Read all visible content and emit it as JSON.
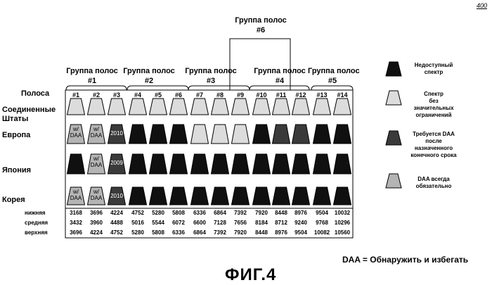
{
  "figure_ref": "400",
  "figure_label": "ФИГ.4",
  "daa_definition": "DAA = Обнаружить и избегать",
  "groups": [
    {
      "label": "Группа полос",
      "num": "#1"
    },
    {
      "label": "Группа полос",
      "num": "#2"
    },
    {
      "label": "Группа полос",
      "num": "#3"
    },
    {
      "label": "Группа полос",
      "num": "#4"
    },
    {
      "label": "Группа полос",
      "num": "#5"
    },
    {
      "label": "Группа полос",
      "num": "#6"
    }
  ],
  "row_labels": {
    "band": "Полоса",
    "usa_1": "Соединенные",
    "usa_2": "Штаты",
    "europe": "Европа",
    "japan": "Япония",
    "korea": "Корея"
  },
  "channels": [
    "#1",
    "#2",
    "#3",
    "#4",
    "#5",
    "#6",
    "#7",
    "#8",
    "#9",
    "#10",
    "#11",
    "#12",
    "#13",
    "#14"
  ],
  "freq_labels": {
    "low": "нижняя",
    "mid": "средняя",
    "high": "верхняя"
  },
  "freqs": {
    "low": [
      "3168",
      "3696",
      "4224",
      "4752",
      "5280",
      "5808",
      "6336",
      "6864",
      "7392",
      "7920",
      "8448",
      "8976",
      "9504",
      "10032"
    ],
    "mid": [
      "3432",
      "3960",
      "4488",
      "5016",
      "5544",
      "6072",
      "6600",
      "7128",
      "7656",
      "8184",
      "8712",
      "9240",
      "9768",
      "10296"
    ],
    "high": [
      "3696",
      "4224",
      "4752",
      "5280",
      "5808",
      "6336",
      "6864",
      "7392",
      "7920",
      "8448",
      "8976",
      "9504",
      "10082",
      "10560"
    ]
  },
  "legend": [
    {
      "lines": [
        "Недоступный",
        "спектр"
      ],
      "style": "black"
    },
    {
      "lines": [
        "Спектр",
        "без",
        "значительных",
        "ограничений"
      ],
      "style": "light"
    },
    {
      "lines": [
        "Требуется DAA",
        "после",
        "назначенного",
        "конечного срока"
      ],
      "style": "dark"
    },
    {
      "lines": [
        "DAA всегда",
        "обязательно"
      ],
      "style": "mid"
    }
  ],
  "rows": {
    "usa": [
      "light",
      "light",
      "light",
      "light",
      "light",
      "light",
      "light",
      "light",
      "light",
      "light",
      "light",
      "light",
      "light",
      "light"
    ],
    "europe": [
      "daa",
      "daa",
      "dark",
      "black",
      "black",
      "black",
      "light",
      "light",
      "light",
      "black",
      "dark",
      "dark",
      "black",
      "black"
    ],
    "japan": [
      "black",
      "daa",
      "dark",
      "black",
      "black",
      "black",
      "black",
      "black",
      "black",
      "black",
      "black",
      "black",
      "black",
      "black"
    ],
    "korea": [
      "daa",
      "daa",
      "dark",
      "black",
      "black",
      "black",
      "black",
      "black",
      "black",
      "black",
      "black",
      "black",
      "black",
      "black"
    ]
  },
  "cell_text": {
    "europe": {
      "0": [
        "w/",
        "DAA"
      ],
      "1": [
        "w/",
        "DAA"
      ],
      "2": [
        "2010"
      ]
    },
    "japan": {
      "1": [
        "w/",
        "DAA"
      ],
      "2": [
        "2009"
      ]
    },
    "korea": {
      "0": [
        "w/",
        "DAA"
      ],
      "1": [
        "w/",
        "DAA"
      ],
      "2": [
        "2010"
      ]
    }
  },
  "colors": {
    "black": "#101010",
    "dark": "#3a3a3a",
    "light": "#dcdcdc",
    "mid": "#b4b4b4"
  }
}
